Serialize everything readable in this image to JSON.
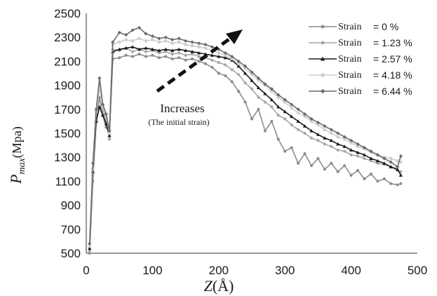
{
  "chart_data": {
    "type": "line",
    "title": "",
    "xlabel": "Z(Å)",
    "ylabel": "P_max (Mpa)",
    "ylabel_main": "P",
    "ylabel_sub": "max",
    "ylabel_unit": "(Mpa)",
    "xlabel_main": "Z",
    "xlabel_unit": "(Å)",
    "xlim": [
      0,
      500
    ],
    "ylim": [
      500,
      2500
    ],
    "x_ticks": [
      "0",
      "100",
      "200",
      "300",
      "400",
      "500"
    ],
    "y_ticks": [
      "500",
      "700",
      "900",
      "1100",
      "1300",
      "1500",
      "1700",
      "1900",
      "2100",
      "2300",
      "2500"
    ],
    "grid": false,
    "legend_position": "top-right",
    "annotation": {
      "text": "Increases",
      "subtext": "(The initial strain)",
      "arrow": "dashed, pointing up-right"
    },
    "series": [
      {
        "name": "Strain = 0 %",
        "label": "Strain",
        "value": "= 0 %",
        "color": "#8c8c8c",
        "marker": "circle",
        "x": [
          5,
          10,
          15,
          20,
          25,
          30,
          35,
          40,
          50,
          60,
          70,
          80,
          90,
          100,
          110,
          120,
          130,
          140,
          150,
          160,
          170,
          180,
          190,
          200,
          210,
          220,
          230,
          240,
          250,
          260,
          270,
          280,
          290,
          300,
          310,
          320,
          330,
          340,
          350,
          360,
          370,
          380,
          390,
          400,
          410,
          420,
          430,
          440,
          450,
          460,
          470,
          475
        ],
        "y": [
          500,
          1100,
          1600,
          1800,
          1650,
          1550,
          1500,
          2120,
          2130,
          2150,
          2140,
          2160,
          2140,
          2150,
          2130,
          2140,
          2120,
          2130,
          2110,
          2120,
          2100,
          2080,
          2050,
          2000,
          1980,
          1930,
          1850,
          1760,
          1620,
          1700,
          1520,
          1600,
          1450,
          1350,
          1380,
          1250,
          1330,
          1230,
          1290,
          1200,
          1250,
          1180,
          1230,
          1150,
          1190,
          1120,
          1160,
          1100,
          1120,
          1080,
          1070,
          1080
        ]
      },
      {
        "name": "Strain = 1.23 %",
        "label": "Strain",
        "value": "= 1.23 %",
        "color": "#a6a6a6",
        "marker": "circle",
        "x": [
          5,
          10,
          15,
          20,
          25,
          30,
          35,
          40,
          50,
          60,
          70,
          80,
          90,
          100,
          110,
          120,
          130,
          140,
          150,
          160,
          170,
          180,
          190,
          200,
          210,
          220,
          230,
          240,
          250,
          260,
          270,
          280,
          290,
          300,
          310,
          320,
          330,
          340,
          350,
          360,
          370,
          380,
          390,
          400,
          410,
          420,
          430,
          440,
          450,
          460,
          470,
          475
        ],
        "y": [
          520,
          1150,
          1650,
          1900,
          1700,
          1600,
          1450,
          2200,
          2190,
          2210,
          2180,
          2200,
          2180,
          2190,
          2170,
          2180,
          2160,
          2170,
          2150,
          2160,
          2140,
          2130,
          2110,
          2090,
          2070,
          2030,
          1990,
          1920,
          1870,
          1800,
          1760,
          1720,
          1650,
          1620,
          1570,
          1530,
          1500,
          1460,
          1440,
          1410,
          1390,
          1360,
          1350,
          1320,
          1310,
          1290,
          1270,
          1250,
          1240,
          1220,
          1190,
          1180
        ]
      },
      {
        "name": "Strain = 2.57 %",
        "label": "Strain",
        "value": "= 2.57 %",
        "color": "#1a1a1a",
        "marker": "triangle",
        "x": [
          5,
          10,
          15,
          20,
          25,
          30,
          35,
          40,
          50,
          60,
          70,
          80,
          90,
          100,
          110,
          120,
          130,
          140,
          150,
          160,
          170,
          180,
          190,
          200,
          210,
          220,
          230,
          240,
          250,
          260,
          270,
          280,
          290,
          300,
          310,
          320,
          330,
          340,
          350,
          360,
          370,
          380,
          390,
          400,
          410,
          420,
          430,
          440,
          450,
          460,
          470,
          475
        ],
        "y": [
          540,
          1180,
          1600,
          1720,
          1650,
          1580,
          1480,
          2180,
          2200,
          2210,
          2220,
          2200,
          2210,
          2200,
          2190,
          2200,
          2190,
          2200,
          2190,
          2180,
          2170,
          2160,
          2150,
          2140,
          2130,
          2110,
          2060,
          2000,
          1940,
          1880,
          1830,
          1780,
          1720,
          1680,
          1640,
          1600,
          1560,
          1520,
          1490,
          1460,
          1440,
          1410,
          1390,
          1360,
          1340,
          1320,
          1290,
          1270,
          1250,
          1220,
          1200,
          1150
        ]
      },
      {
        "name": "Strain = 4.18 %",
        "label": "Strain",
        "value": "= 4.18 %",
        "color": "#cfcfcf",
        "marker": "square",
        "x": [
          5,
          10,
          15,
          20,
          25,
          30,
          35,
          40,
          50,
          60,
          70,
          80,
          90,
          100,
          110,
          120,
          130,
          140,
          150,
          160,
          170,
          180,
          190,
          200,
          210,
          220,
          230,
          240,
          250,
          260,
          270,
          280,
          290,
          300,
          310,
          320,
          330,
          340,
          350,
          360,
          370,
          380,
          390,
          400,
          410,
          420,
          430,
          440,
          450,
          460,
          470,
          475
        ],
        "y": [
          560,
          1200,
          1680,
          1880,
          1720,
          1640,
          1500,
          2240,
          2260,
          2280,
          2270,
          2290,
          2270,
          2280,
          2260,
          2270,
          2250,
          2260,
          2240,
          2230,
          2220,
          2210,
          2190,
          2170,
          2150,
          2120,
          2080,
          2040,
          1990,
          1940,
          1900,
          1850,
          1800,
          1760,
          1710,
          1670,
          1640,
          1600,
          1570,
          1530,
          1500,
          1470,
          1450,
          1420,
          1390,
          1370,
          1340,
          1320,
          1300,
          1290,
          1270,
          1260
        ]
      },
      {
        "name": "Strain = 6.44 %",
        "label": "Strain",
        "value": "= 6.44 %",
        "color": "#6b6b6b",
        "marker": "diamond",
        "x": [
          5,
          10,
          15,
          20,
          25,
          30,
          35,
          40,
          50,
          60,
          70,
          80,
          90,
          100,
          110,
          120,
          130,
          140,
          150,
          160,
          170,
          180,
          190,
          200,
          210,
          220,
          230,
          240,
          250,
          260,
          270,
          280,
          290,
          300,
          310,
          320,
          330,
          340,
          350,
          360,
          370,
          380,
          390,
          400,
          410,
          420,
          430,
          440,
          450,
          460,
          470,
          475
        ],
        "y": [
          580,
          1250,
          1700,
          1960,
          1740,
          1660,
          1520,
          2260,
          2340,
          2320,
          2360,
          2380,
          2330,
          2310,
          2290,
          2300,
          2280,
          2290,
          2270,
          2260,
          2250,
          2240,
          2220,
          2200,
          2170,
          2140,
          2100,
          2060,
          2010,
          1960,
          1910,
          1870,
          1820,
          1780,
          1740,
          1700,
          1660,
          1620,
          1590,
          1560,
          1530,
          1500,
          1470,
          1440,
          1410,
          1380,
          1350,
          1320,
          1290,
          1260,
          1220,
          1310
        ]
      }
    ]
  }
}
